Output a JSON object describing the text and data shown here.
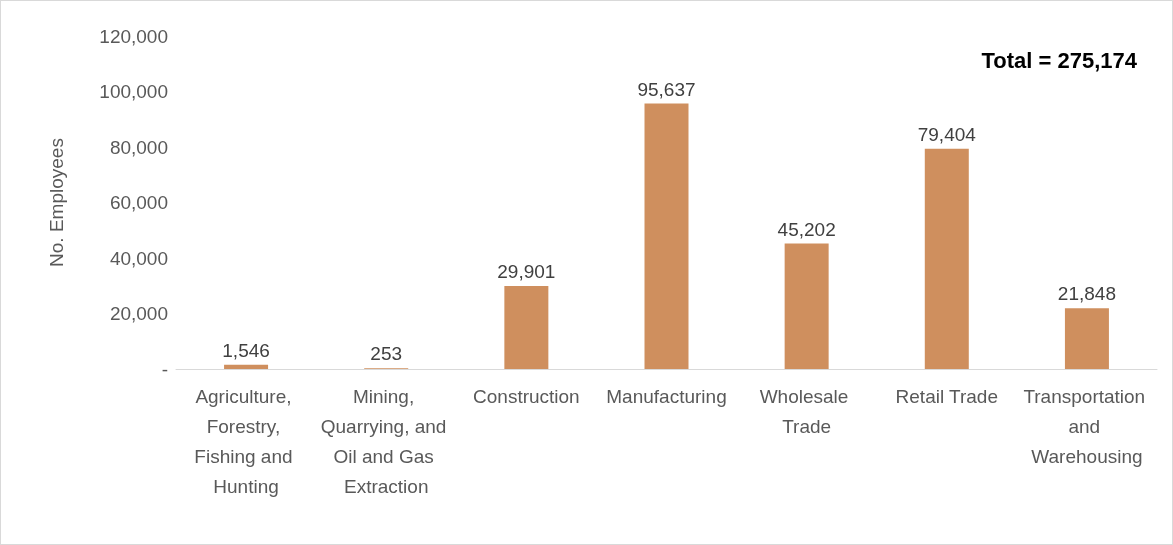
{
  "chart_data": {
    "type": "bar",
    "ylabel": "No. Employees",
    "categories": [
      "Agriculture, Forestry, Fishing and Hunting",
      "Mining, Quarrying, and Oil and Gas Extraction",
      "Construction",
      "Manufacturing",
      "Wholesale Trade",
      "Retail Trade",
      "Transportation and Warehousing"
    ],
    "values": [
      1546,
      253,
      29901,
      95637,
      45202,
      79404,
      21848
    ],
    "color": "#cf8f5e",
    "ylim": [
      0,
      120000
    ],
    "value_labels": [
      "1,546",
      "253",
      "29,901",
      "95,637",
      "45,202",
      "79,404",
      "21,848"
    ],
    "yticks": [
      {
        "value": 0,
        "label": "-"
      },
      {
        "value": 20000,
        "label": "20,000"
      },
      {
        "value": 40000,
        "label": "40,000"
      },
      {
        "value": 60000,
        "label": "60,000"
      },
      {
        "value": 80000,
        "label": "80,000"
      },
      {
        "value": 100000,
        "label": "100,000"
      },
      {
        "value": 120000,
        "label": "120,000"
      }
    ],
    "grid": false,
    "annotations": [
      "Total = 275,174"
    ]
  }
}
